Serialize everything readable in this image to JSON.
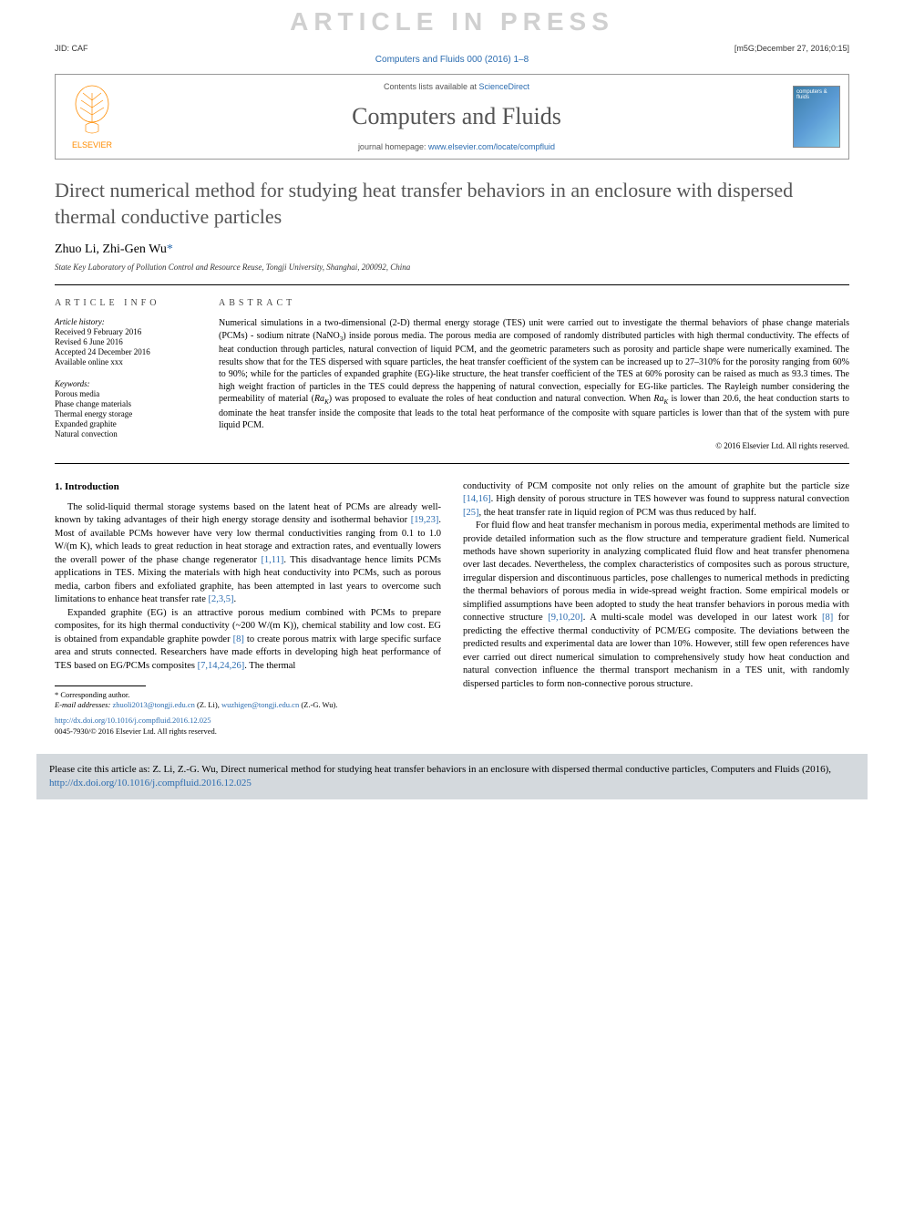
{
  "watermark": "ARTICLE IN PRESS",
  "topMeta": {
    "jid": "JID: CAF",
    "stamp": "[m5G;December 27, 2016;0:15]"
  },
  "journalRef": "Computers and Fluids 000 (2016) 1–8",
  "journalBox": {
    "contentsLabel": "Contents lists available at ",
    "contentsLink": "ScienceDirect",
    "journalName": "Computers and Fluids",
    "homepageLabel": "journal homepage: ",
    "homepageLink": "www.elsevier.com/locate/compfluid",
    "elsevierLabel": "ELSEVIER",
    "coverTitle": "computers & fluids"
  },
  "title": "Direct numerical method for studying heat transfer behaviors in an enclosure with dispersed thermal conductive particles",
  "authors": "Zhuo Li, Zhi-Gen Wu",
  "affiliation": "State Key Laboratory of Pollution Control and Resource Reuse, Tongji University, Shanghai, 200092, China",
  "info": {
    "heading": "ARTICLE INFO",
    "historyLabel": "Article history:",
    "received": "Received 9 February 2016",
    "revised": "Revised 6 June 2016",
    "accepted": "Accepted 24 December 2016",
    "online": "Available online xxx",
    "keywordsLabel": "Keywords:",
    "keywords": [
      "Porous media",
      "Phase change materials",
      "Thermal energy storage",
      "Expanded graphite",
      "Natural convection"
    ]
  },
  "abstract": {
    "heading": "ABSTRACT",
    "text": "Numerical simulations in a two-dimensional (2-D) thermal energy storage (TES) unit were carried out to investigate the thermal behaviors of phase change materials (PCMs) - sodium nitrate (NaNO3) inside porous media. The porous media are composed of randomly distributed particles with high thermal conductivity. The effects of heat conduction through particles, natural convection of liquid PCM, and the geometric parameters such as porosity and particle shape were numerically examined. The results show that for the TES dispersed with square particles, the heat transfer coefficient of the system can be increased up to 27–310% for the porosity ranging from 60% to 90%; while for the particles of expanded graphite (EG)-like structure, the heat transfer coefficient of the TES at 60% porosity can be raised as much as 93.3 times. The high weight fraction of particles in the TES could depress the happening of natural convection, especially for EG-like particles. The Rayleigh number considering the permeability of material (RaK) was proposed to evaluate the roles of heat conduction and natural convection. When RaK is lower than 20.6, the heat conduction starts to dominate the heat transfer inside the composite that leads to the total heat performance of the composite with square particles is lower than that of the system with pure liquid PCM.",
    "copyright": "© 2016 Elsevier Ltd. All rights reserved."
  },
  "body": {
    "sectionHeading": "1. Introduction",
    "col1p1": "The solid-liquid thermal storage systems based on the latent heat of PCMs are already well-known by taking advantages of their high energy storage density and isothermal behavior [19,23]. Most of available PCMs however have very low thermal conductivities ranging from 0.1 to 1.0 W/(m K), which leads to great reduction in heat storage and extraction rates, and eventually lowers the overall power of the phase change regenerator [1,11]. This disadvantage hence limits PCMs applications in TES. Mixing the materials with high heat conductivity into PCMs, such as porous media, carbon fibers and exfoliated graphite, has been attempted in last years to overcome such limitations to enhance heat transfer rate [2,3,5].",
    "col1p2": "Expanded graphite (EG) is an attractive porous medium combined with PCMs to prepare composites, for its high thermal conductivity (~200 W/(m K)), chemical stability and low cost. EG is obtained from expandable graphite powder [8] to create porous matrix with large specific surface area and struts connected. Researchers have made efforts in developing high heat performance of TES based on EG/PCMs composites [7,14,24,26]. The thermal",
    "col2p1": "conductivity of PCM composite not only relies on the amount of graphite but the particle size [14,16]. High density of porous structure in TES however was found to suppress natural convection [25], the heat transfer rate in liquid region of PCM was thus reduced by half.",
    "col2p2": "For fluid flow and heat transfer mechanism in porous media, experimental methods are limited to provide detailed information such as the flow structure and temperature gradient field. Numerical methods have shown superiority in analyzing complicated fluid flow and heat transfer phenomena over last decades. Nevertheless, the complex characteristics of composites such as porous structure, irregular dispersion and discontinuous particles, pose challenges to numerical methods in predicting the thermal behaviors of porous media in wide-spread weight fraction. Some empirical models or simplified assumptions have been adopted to study the heat transfer behaviors in porous media with connective structure [9,10,20]. A multi-scale model was developed in our latest work [8] for predicting the effective thermal conductivity of PCM/EG composite. The deviations between the predicted results and experimental data are lower than 10%. However, still few open references have ever carried out direct numerical simulation to comprehensively study how heat conduction and natural convection influence the thermal transport mechanism in a TES unit, with randomly dispersed particles to form non-connective porous structure."
  },
  "footnote": {
    "corrLabel": "* Corresponding author.",
    "emailLabel": "E-mail addresses: ",
    "email1": "zhuoli2013@tongji.edu.cn",
    "name1": " (Z. Li), ",
    "email2": "wuzhigen@tongji.edu.cn",
    "name2": " (Z.-G. Wu)."
  },
  "doi": {
    "link": "http://dx.doi.org/10.1016/j.compfluid.2016.12.025",
    "issn": "0045-7930/© 2016 Elsevier Ltd. All rights reserved."
  },
  "citeBox": {
    "text": "Please cite this article as: Z. Li, Z.-G. Wu, Direct numerical method for studying heat transfer behaviors in an enclosure with dispersed thermal conductive particles, Computers and Fluids (2016), ",
    "link": "http://dx.doi.org/10.1016/j.compfluid.2016.12.025"
  },
  "refs": {
    "r1": "[19,23]",
    "r2": "[1,11]",
    "r3": "[2,3,5]",
    "r4": "[8]",
    "r5": "[7,14,24,26]",
    "r6": "[14,16]",
    "r7": "[25]",
    "r8": "[9,10,20]",
    "r9": "[8]"
  },
  "colors": {
    "link": "#2b6cb0",
    "watermark": "#d0d0d0",
    "grayText": "#555",
    "citeBg": "#d4d9dd"
  }
}
